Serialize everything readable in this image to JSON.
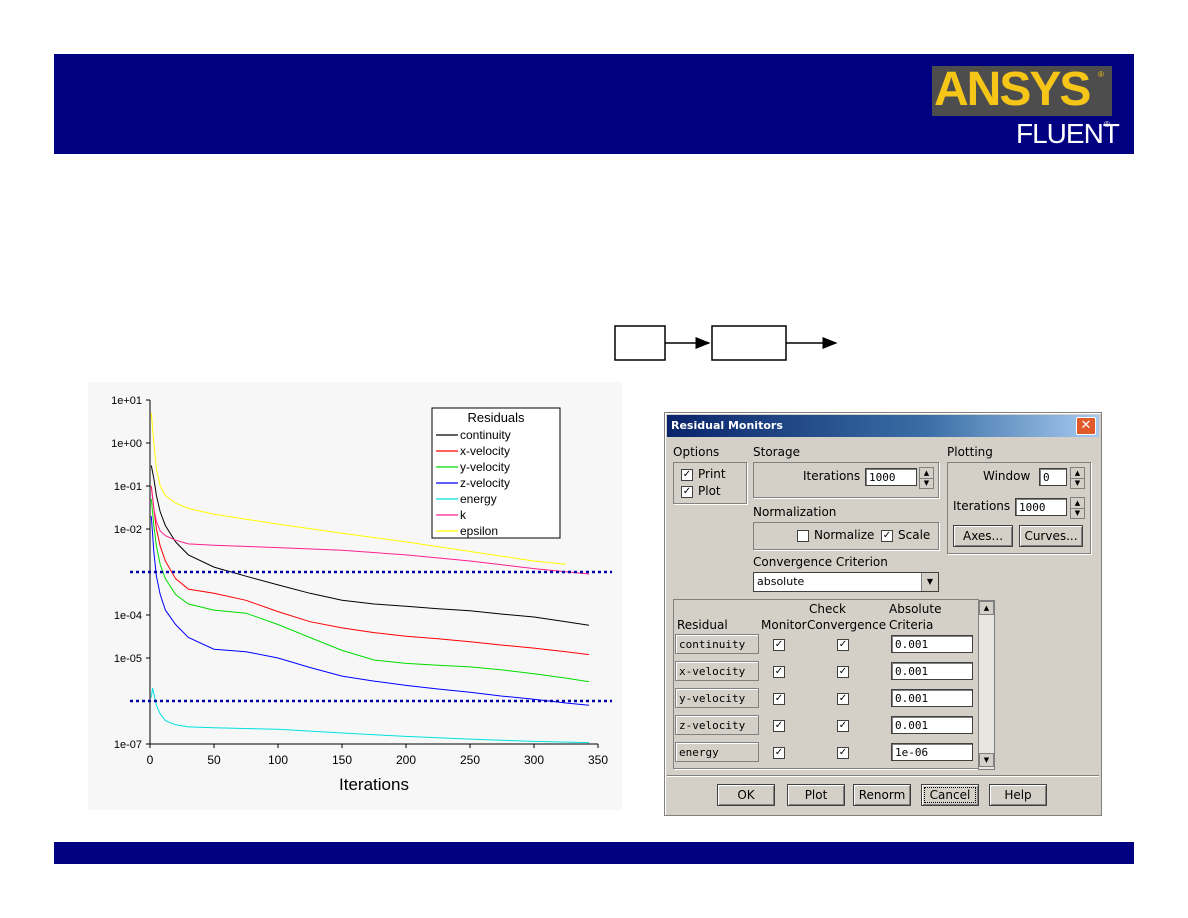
{
  "logo": {
    "brand": "ANSYS",
    "product": "FLUENT",
    "reg_mark": "®"
  },
  "chart_data": {
    "type": "line",
    "title": "",
    "xlabel": "Iterations",
    "ylabel": "",
    "xlim": [
      0,
      350
    ],
    "ylim": [
      1e-07,
      10
    ],
    "y_scale": "log",
    "x_ticks": [
      "0",
      "50",
      "100",
      "150",
      "200",
      "250",
      "300",
      "350"
    ],
    "y_ticks": [
      "1e+01",
      "1e+00",
      "1e-01",
      "1e-02",
      "1e-04",
      "1e-05",
      "1e-07"
    ],
    "legend_title": "Residuals",
    "legend_position": "top-right",
    "series": [
      {
        "name": "continuity",
        "color": "#000000",
        "x": [
          1,
          3,
          5,
          8,
          12,
          20,
          30,
          50,
          75,
          100,
          125,
          150,
          175,
          200,
          225,
          250,
          275,
          300,
          325,
          343
        ],
        "y": [
          0.3,
          0.15,
          0.06,
          0.025,
          0.012,
          0.005,
          0.0025,
          0.0013,
          0.0008,
          0.0005,
          0.00032,
          0.00022,
          0.00018,
          0.00016,
          0.00014,
          0.000125,
          0.000105,
          9e-05,
          7e-05,
          5.8e-05
        ]
      },
      {
        "name": "x-velocity",
        "color": "#ff0000",
        "x": [
          1,
          3,
          5,
          8,
          12,
          20,
          30,
          50,
          75,
          100,
          125,
          150,
          175,
          200,
          225,
          250,
          275,
          300,
          325,
          343
        ],
        "y": [
          0.1,
          0.03,
          0.01,
          0.004,
          0.0018,
          0.0007,
          0.0004,
          0.00032,
          0.00022,
          0.00012,
          7e-05,
          5e-05,
          3.9e-05,
          3.2e-05,
          2.8e-05,
          2.4e-05,
          2e-05,
          1.7e-05,
          1.4e-05,
          1.2e-05
        ]
      },
      {
        "name": "y-velocity",
        "color": "#00dd00",
        "x": [
          1,
          3,
          5,
          8,
          12,
          20,
          30,
          50,
          75,
          100,
          125,
          150,
          175,
          200,
          225,
          250,
          275,
          300,
          325,
          343
        ],
        "y": [
          0.05,
          0.012,
          0.004,
          0.0015,
          0.0007,
          0.0003,
          0.00018,
          0.00013,
          0.00011,
          6e-05,
          3e-05,
          1.5e-05,
          9e-06,
          7.5e-06,
          6.8e-06,
          6.2e-06,
          5.3e-06,
          4.3e-06,
          3.4e-06,
          2.8e-06
        ]
      },
      {
        "name": "z-velocity",
        "color": "#0000ff",
        "x": [
          1,
          3,
          5,
          8,
          12,
          20,
          30,
          50,
          75,
          100,
          125,
          150,
          175,
          200,
          225,
          250,
          275,
          300,
          325,
          343
        ],
        "y": [
          0.02,
          0.003,
          0.0008,
          0.0003,
          0.00013,
          6e-05,
          3e-05,
          1.6e-05,
          1.4e-05,
          1e-05,
          6e-06,
          3.8e-06,
          2.9e-06,
          2.3e-06,
          1.9e-06,
          1.6e-06,
          1.3e-06,
          1.1e-06,
          9e-07,
          8e-07
        ]
      },
      {
        "name": "energy",
        "color": "#00e0e0",
        "x": [
          1,
          2,
          3,
          5,
          8,
          12,
          20,
          30,
          50,
          100,
          150,
          200,
          250,
          300,
          343
        ],
        "y": [
          1.2e-06,
          2e-06,
          1.5e-06,
          8e-07,
          5e-07,
          3.5e-07,
          2.8e-07,
          2.5e-07,
          2.4e-07,
          2.2e-07,
          1.8e-07,
          1.5e-07,
          1.3e-07,
          1.15e-07,
          1.08e-07
        ]
      },
      {
        "name": "k",
        "color": "#ff2090",
        "x": [
          1,
          3,
          5,
          8,
          12,
          20,
          30,
          50,
          100,
          150,
          200,
          250,
          300,
          343
        ],
        "y": [
          0.1,
          0.03,
          0.015,
          0.009,
          0.007,
          0.0055,
          0.0045,
          0.0042,
          0.0037,
          0.0032,
          0.0025,
          0.0018,
          0.0012,
          0.0009
        ]
      },
      {
        "name": "epsilon",
        "color": "#ffff00",
        "x": [
          1,
          3,
          5,
          8,
          12,
          20,
          30,
          50,
          100,
          150,
          200,
          250,
          300,
          325
        ],
        "y": [
          5,
          1,
          0.25,
          0.1,
          0.06,
          0.04,
          0.03,
          0.022,
          0.013,
          0.008,
          0.005,
          0.003,
          0.0018,
          0.0015
        ]
      }
    ],
    "reference_lines": [
      0.001,
      1e-06
    ]
  },
  "dialog": {
    "title": "Residual Monitors",
    "options_label": "Options",
    "print_label": "Print",
    "plot_label": "Plot",
    "print_checked": true,
    "plot_checked": true,
    "storage_label": "Storage",
    "storage_iterations_label": "Iterations",
    "storage_iterations_value": "1000",
    "plotting_label": "Plotting",
    "window_label": "Window",
    "window_value": "0",
    "plot_iterations_label": "Iterations",
    "plot_iterations_value": "1000",
    "normalization_label": "Normalization",
    "normalize_label": "Normalize",
    "normalize_checked": false,
    "scale_label": "Scale",
    "scale_checked": true,
    "axes_button": "Axes...",
    "curves_button": "Curves...",
    "convergence_label": "Convergence Criterion",
    "convergence_value": "absolute",
    "table_headers": {
      "residual": "Residual",
      "monitor": "Monitor",
      "check_line1": "Check",
      "check_line2": "Convergence",
      "absolute_line1": "Absolute",
      "absolute_line2": "Criteria"
    },
    "rows": [
      {
        "name": "continuity",
        "monitor": true,
        "check": true,
        "criteria": "0.001"
      },
      {
        "name": "x-velocity",
        "monitor": true,
        "check": true,
        "criteria": "0.001"
      },
      {
        "name": "y-velocity",
        "monitor": true,
        "check": true,
        "criteria": "0.001"
      },
      {
        "name": "z-velocity",
        "monitor": true,
        "check": true,
        "criteria": "0.001"
      },
      {
        "name": "energy",
        "monitor": true,
        "check": true,
        "criteria": "1e-06"
      }
    ],
    "buttons": {
      "ok": "OK",
      "plot": "Plot",
      "renorm": "Renorm",
      "cancel": "Cancel",
      "help": "Help"
    },
    "check_glyph": "✓"
  }
}
